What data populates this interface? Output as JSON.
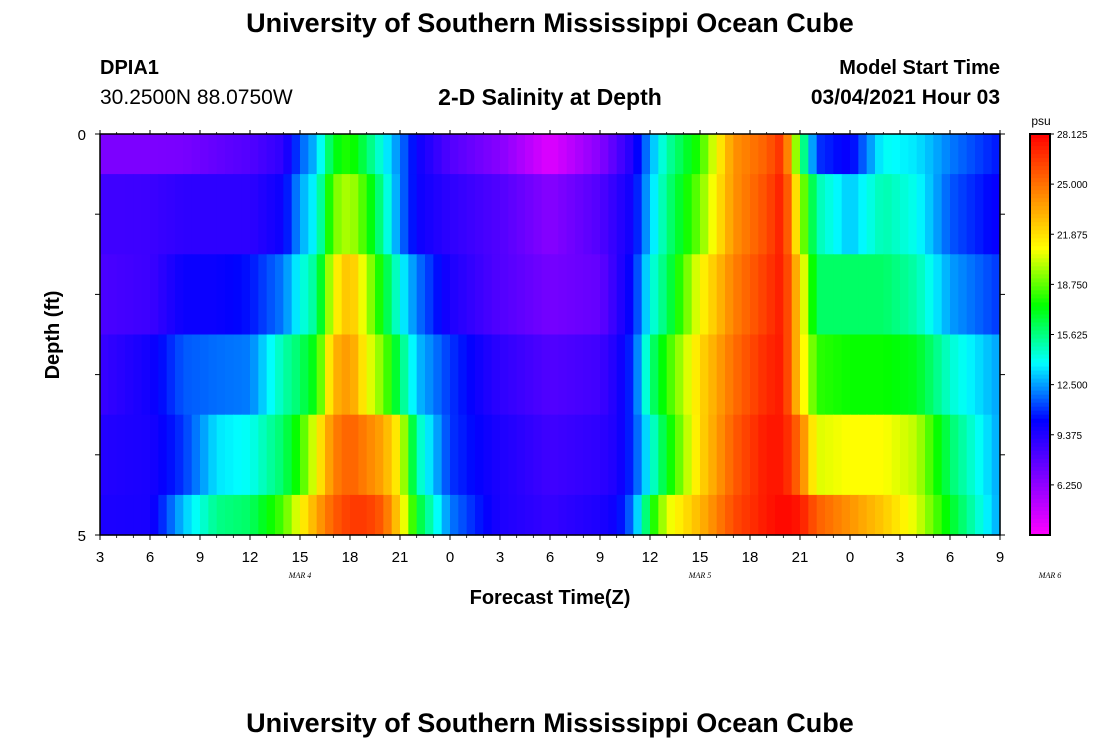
{
  "header": {
    "title": "University of Southern Mississippi Ocean Cube",
    "station_id": "DPIA1",
    "station_coords": "30.2500N 88.0750W",
    "chart_title": "2-D Salinity at Depth",
    "model_start_label": "Model Start Time",
    "model_start_value": "03/04/2021 Hour 03"
  },
  "footer": {
    "title": "University of Southern Mississippi Ocean Cube"
  },
  "colors": {
    "colormap": [
      "#ff00ff",
      "#8000ff",
      "#0000ff",
      "#00ffff",
      "#00ff00",
      "#ffff00",
      "#ff8000",
      "#ff0000"
    ]
  },
  "chart_data": {
    "type": "heatmap",
    "title": "2-D Salinity at Depth",
    "xlabel": "Forecast Time(Z)",
    "ylabel": "Depth (ft)",
    "x_tick_labels": [
      "3",
      "6",
      "9",
      "12",
      "15",
      "18",
      "21",
      "0",
      "3",
      "6",
      "9",
      "12",
      "15",
      "18",
      "21",
      "0",
      "3",
      "6",
      "9"
    ],
    "x_start_hour": 3,
    "x_end_hour": 57,
    "x_step_hours": 3,
    "date_labels": [
      {
        "label": "MAR 4",
        "hour": 15
      },
      {
        "label": "MAR 5",
        "hour": 39
      },
      {
        "label": "MAR 6",
        "hour": 60
      }
    ],
    "y_tick_labels": [
      "0",
      "5"
    ],
    "ylim": [
      0,
      5
    ],
    "depth_rows": [
      0,
      0.5,
      1.5,
      2.5,
      3.5,
      4.5,
      5
    ],
    "colorbar": {
      "unit": "psu",
      "min": 3.125,
      "max": 28.125,
      "tick_labels": [
        "28.125",
        "25.000",
        "21.875",
        "18.750",
        "15.625",
        "12.500",
        "9.375",
        "6.250"
      ],
      "tick_values": [
        28.125,
        25.0,
        21.875,
        18.75,
        15.625,
        12.5,
        9.375,
        6.25
      ]
    },
    "profile_nodes": [
      {
        "hour": 3,
        "values": [
          6.8,
          8.5,
          8.2,
          8.7,
          9.3,
          9.5
        ]
      },
      {
        "hour": 6,
        "values": [
          6.8,
          8.6,
          8.6,
          9.8,
          9.6,
          9.6
        ]
      },
      {
        "hour": 8,
        "values": [
          6.9,
          9.0,
          10.0,
          11.5,
          11.0,
          13.0
        ]
      },
      {
        "hour": 10,
        "values": [
          7.5,
          9.0,
          10.0,
          11.8,
          13.5,
          15.5
        ]
      },
      {
        "hour": 12,
        "values": [
          8.0,
          9.0,
          10.5,
          12.0,
          14.0,
          16.0
        ]
      },
      {
        "hour": 14,
        "values": [
          9.0,
          10.0,
          12.0,
          15.0,
          16.0,
          18.5
        ]
      },
      {
        "hour": 15,
        "values": [
          11.5,
          12.5,
          14.0,
          16.0,
          18.0,
          21.0
        ]
      },
      {
        "hour": 16,
        "values": [
          13.0,
          14.0,
          15.5,
          17.5,
          21.0,
          23.5
        ]
      },
      {
        "hour": 17,
        "values": [
          17.0,
          19.0,
          21.0,
          23.0,
          24.5,
          25.5
        ]
      },
      {
        "hour": 18,
        "values": [
          18.0,
          20.0,
          23.0,
          24.0,
          25.5,
          26.5
        ]
      },
      {
        "hour": 19,
        "values": [
          16.0,
          18.0,
          20.0,
          21.0,
          24.5,
          26.5
        ]
      },
      {
        "hour": 20,
        "values": [
          14.0,
          15.0,
          17.0,
          19.0,
          23.5,
          25.5
        ]
      },
      {
        "hour": 21,
        "values": [
          12.0,
          12.0,
          14.0,
          16.0,
          21.0,
          22.0
        ]
      },
      {
        "hour": 22,
        "values": [
          10.0,
          10.0,
          12.0,
          13.0,
          15.0,
          17.0
        ]
      },
      {
        "hour": 24,
        "values": [
          8.0,
          9.0,
          9.5,
          11.0,
          11.0,
          12.0
        ]
      },
      {
        "hour": 27,
        "values": [
          6.5,
          8.0,
          8.0,
          9.0,
          9.5,
          9.5
        ]
      },
      {
        "hour": 30,
        "values": [
          4.0,
          6.5,
          7.0,
          8.0,
          8.5,
          8.8
        ]
      },
      {
        "hour": 33,
        "values": [
          6.5,
          8.0,
          7.5,
          8.5,
          9.0,
          9.5
        ]
      },
      {
        "hour": 34,
        "values": [
          8.0,
          9.0,
          9.0,
          9.5,
          9.5,
          10.0
        ]
      },
      {
        "hour": 35,
        "values": [
          9.5,
          10.0,
          10.5,
          11.0,
          11.0,
          12.0
        ]
      },
      {
        "hour": 36,
        "values": [
          12.5,
          13.0,
          14.0,
          15.5,
          14.0,
          17.0
        ]
      },
      {
        "hour": 37,
        "values": [
          15.0,
          15.5,
          16.0,
          18.0,
          17.0,
          20.5
        ]
      },
      {
        "hour": 39,
        "values": [
          18.0,
          19.0,
          21.0,
          22.0,
          22.0,
          23.0
        ]
      },
      {
        "hour": 41,
        "values": [
          24.0,
          24.0,
          24.5,
          25.0,
          25.5,
          26.0
        ]
      },
      {
        "hour": 43,
        "values": [
          25.5,
          26.0,
          26.5,
          27.0,
          27.5,
          27.5
        ]
      },
      {
        "hour": 44,
        "values": [
          27.0,
          27.5,
          27.5,
          27.5,
          27.5,
          28.0
        ]
      },
      {
        "hour": 45,
        "values": [
          17.0,
          20.0,
          22.0,
          22.0,
          25.0,
          27.5
        ]
      },
      {
        "hour": 46,
        "values": [
          11.0,
          15.0,
          16.0,
          18.0,
          20.5,
          25.5
        ]
      },
      {
        "hour": 48,
        "values": [
          10.0,
          13.0,
          16.0,
          17.5,
          21.0,
          24.0
        ]
      },
      {
        "hour": 50,
        "values": [
          14.0,
          15.0,
          16.0,
          17.5,
          21.0,
          22.5
        ]
      },
      {
        "hour": 52,
        "values": [
          13.5,
          14.0,
          15.0,
          17.0,
          20.0,
          20.5
        ]
      },
      {
        "hour": 54,
        "values": [
          12.0,
          11.5,
          12.5,
          14.5,
          16.0,
          17.0
        ]
      },
      {
        "hour": 57,
        "values": [
          10.5,
          10.0,
          11.0,
          12.5,
          12.5,
          12.5
        ]
      }
    ]
  },
  "_rev": "2026-08-11"
}
